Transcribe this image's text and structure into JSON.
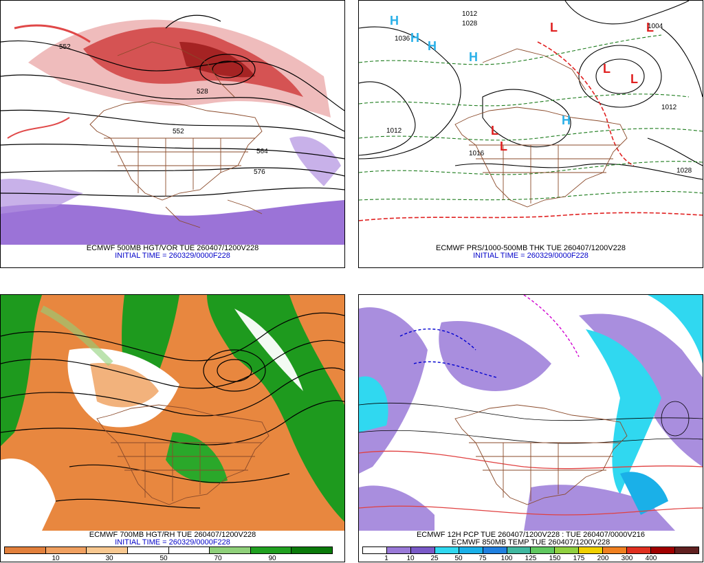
{
  "panels": [
    {
      "title": "ECMWF 500MB HGT/VOR TUE 260407/1200V228",
      "init": "INITIAL TIME = 260329/0000F228",
      "labels": [
        "552",
        "528",
        "552",
        "564",
        "576"
      ]
    },
    {
      "title": "ECMWF PRS/1000-500MB THK TUE 260407/1200V228",
      "init": "INITIAL TIME = 260329/0000F228",
      "labels": [
        "1012",
        "1028",
        "1036",
        "1012",
        "1016",
        "1004",
        "1012",
        "1028"
      ]
    },
    {
      "title": "ECMWF 700MB HGT/RH TUE 260407/1200V228",
      "init": "INITIAL TIME = 260329/0000F228",
      "colorbar": {
        "colors": [
          "#e2803c",
          "#f0a060",
          "#f8c890",
          "#ffffff",
          "#ffffff",
          "#8fd07a",
          "#20a020",
          "#0a7a0a"
        ],
        "ticks": [
          "10",
          "30",
          "50",
          "70",
          "90"
        ]
      }
    },
    {
      "title": "ECMWF 12H PCP TUE 260407/1200V228 : TUE 260407/0000V216",
      "subtitle": "ECMWF 850MB TEMP TUE 260407/1200V228",
      "colorbar": {
        "colors": [
          "#ffffff",
          "#9a7ad8",
          "#7a5ac8",
          "#30d8f0",
          "#1ab0e8",
          "#2080e0",
          "#40b8a0",
          "#60c860",
          "#90d040",
          "#f0d000",
          "#f08020",
          "#e03020",
          "#a00000",
          "#602020"
        ],
        "ticks": [
          "1",
          "10",
          "25",
          "50",
          "75",
          "100",
          "125",
          "150",
          "175",
          "200",
          "300",
          "400"
        ]
      }
    }
  ]
}
